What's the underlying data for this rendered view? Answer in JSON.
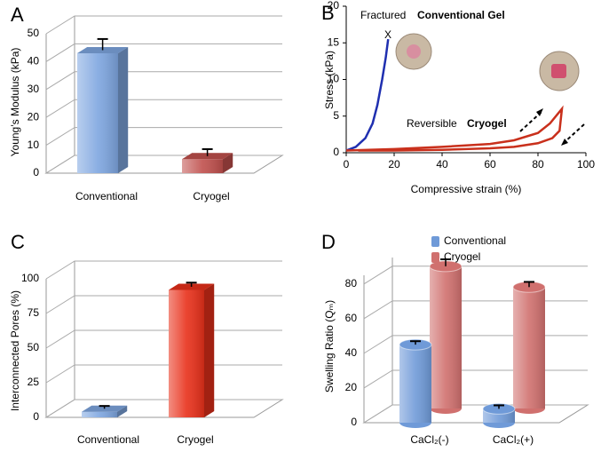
{
  "chart_data": [
    {
      "type": "bar",
      "panel_label": "A",
      "y_label": "Young’s Modulus (kPa)",
      "categories": [
        "Conventional",
        "Cryogel"
      ],
      "values": [
        43,
        5
      ],
      "errors": [
        4,
        2.5
      ],
      "colors": [
        "#7ea6e0",
        "#c0504d"
      ],
      "ylim": [
        0,
        50
      ],
      "yticks": [
        0,
        10,
        20,
        30,
        40,
        50
      ],
      "grid": true
    },
    {
      "type": "line",
      "panel_label": "B",
      "x_label": "Compressive strain (%)",
      "y_label": "Stress (kPa)",
      "xlim": [
        0,
        100
      ],
      "xticks": [
        0,
        20,
        40,
        60,
        80,
        100
      ],
      "ylim": [
        0,
        20
      ],
      "yticks": [
        0,
        5,
        10,
        15,
        20
      ],
      "annotations": [
        "Fractured",
        "Reversible",
        "X"
      ],
      "series": [
        {
          "name": "Conventional Gel",
          "color": "#1f2fb0",
          "x": [
            0,
            4,
            8,
            11,
            13,
            15,
            16.5,
            17.5
          ],
          "values": [
            0.3,
            0.8,
            2,
            4,
            6.5,
            10,
            13,
            15.5
          ]
        },
        {
          "name": "Cryogel",
          "color": "#c9301c",
          "x": [
            0,
            20,
            40,
            60,
            70,
            80,
            85,
            90,
            89,
            86,
            80,
            70,
            60,
            40,
            20,
            5
          ],
          "values": [
            0.3,
            0.5,
            0.8,
            1.2,
            1.7,
            2.7,
            4,
            6,
            3,
            2,
            1.3,
            0.8,
            0.6,
            0.4,
            0.3,
            0.3
          ]
        }
      ]
    },
    {
      "type": "bar",
      "panel_label": "C",
      "y_label": "Interconnected Pores (%)",
      "categories": [
        "Conventional",
        "Cryogel"
      ],
      "values": [
        4,
        92
      ],
      "errors": [
        2,
        3
      ],
      "colors": [
        "#7ea6e0",
        "#e8301a"
      ],
      "ylim": [
        0,
        100
      ],
      "yticks": [
        0,
        25,
        50,
        75,
        100
      ],
      "grid": true
    },
    {
      "type": "bar",
      "panel_label": "D",
      "y_label": "Swelling Ratio (Qₘ)",
      "legend": "top",
      "categories": [
        "CaCl₂(-)",
        "CaCl₂(+)"
      ],
      "ylim": [
        0,
        85
      ],
      "yticks": [
        0,
        20,
        40,
        60,
        80
      ],
      "grid": true,
      "series": [
        {
          "name": "Conventional",
          "color": "#6f9ad8",
          "values": [
            45,
            8
          ],
          "errors": [
            2,
            2
          ]
        },
        {
          "name": "Cryogel",
          "color": "#d0706e",
          "values": [
            82,
            70
          ],
          "errors": [
            4,
            3
          ]
        }
      ]
    }
  ]
}
